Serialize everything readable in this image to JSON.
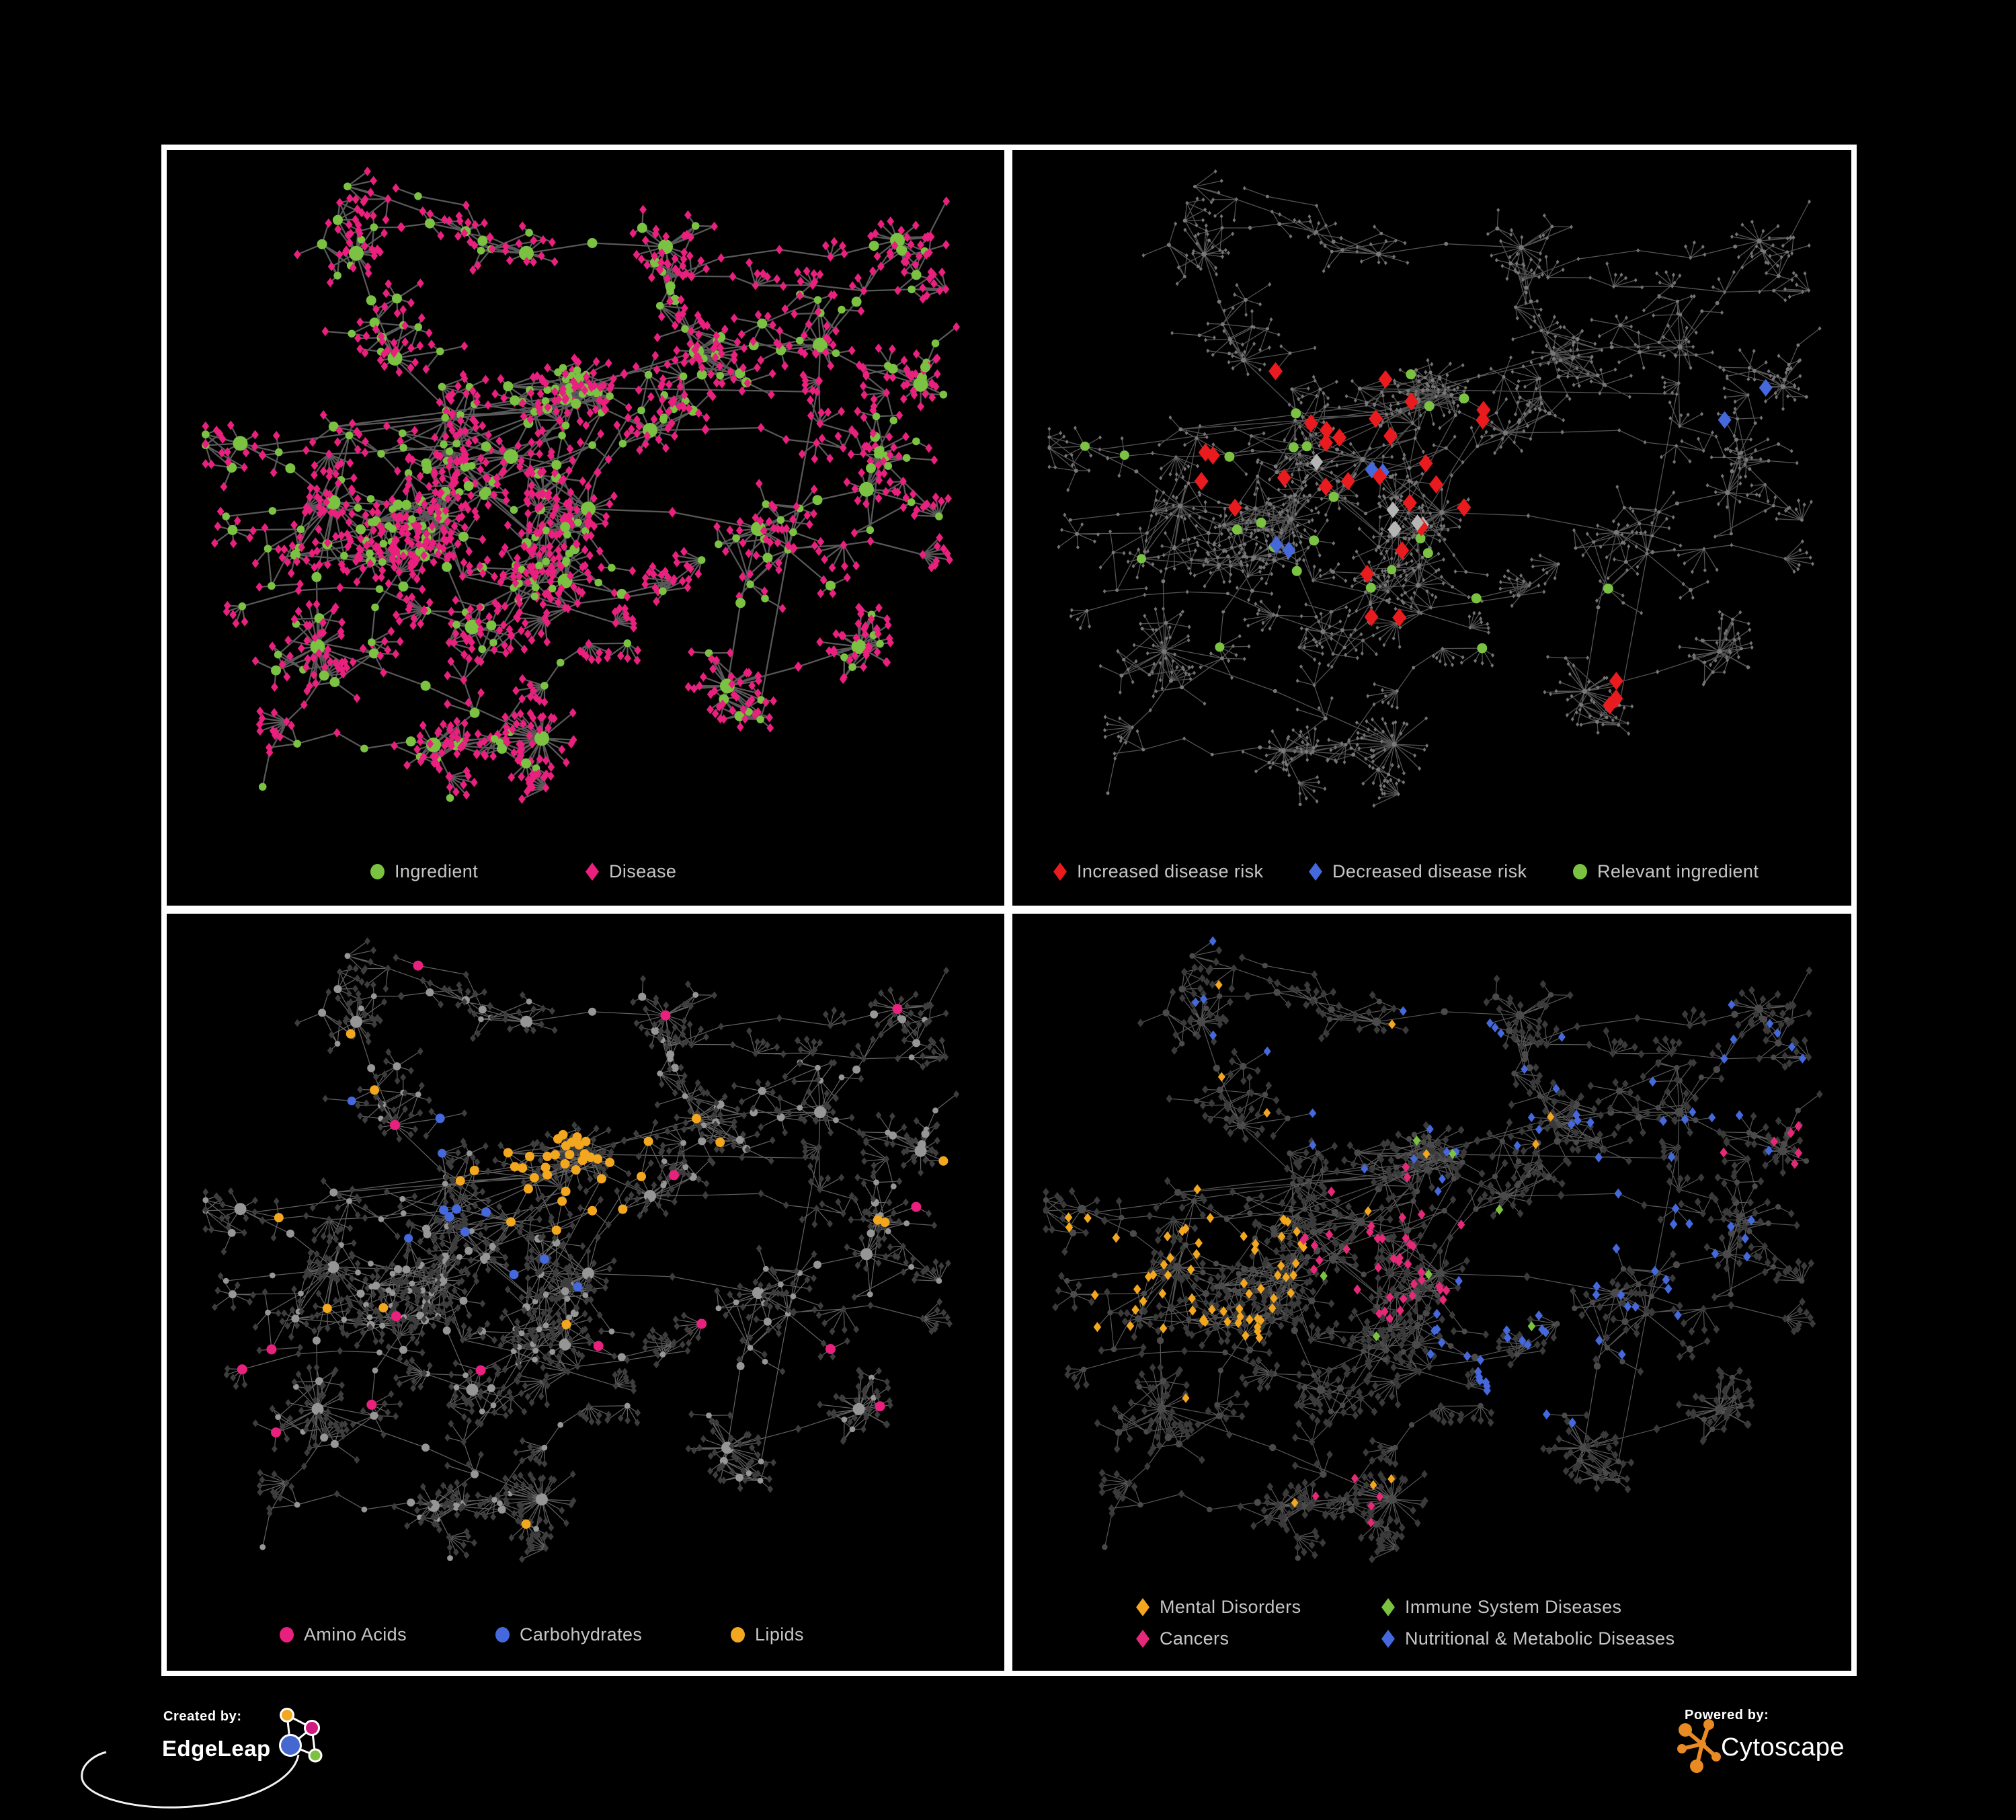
{
  "page": {
    "background": "#000000",
    "frame_color": "#ffffff"
  },
  "legends": {
    "p1": {
      "items": [
        {
          "shape": "circle",
          "color": "#7CC242",
          "label": "Ingredient"
        },
        {
          "shape": "diamond",
          "color": "#E9207E",
          "label": "Disease"
        }
      ]
    },
    "p2": {
      "items": [
        {
          "shape": "diamond",
          "color": "#EA1B1E",
          "label": "Increased disease risk"
        },
        {
          "shape": "diamond",
          "color": "#4569DC",
          "label": "Decreased disease risk"
        },
        {
          "shape": "circle",
          "color": "#7CC242",
          "label": "Relevant ingredient"
        }
      ]
    },
    "p3": {
      "items": [
        {
          "shape": "circle",
          "color": "#E9207E",
          "label": "Amino Acids"
        },
        {
          "shape": "circle",
          "color": "#4569DC",
          "label": "Carbohydrates"
        },
        {
          "shape": "circle",
          "color": "#F3A71E",
          "label": "Lipids"
        }
      ]
    },
    "p4": {
      "items": [
        {
          "shape": "diamond",
          "color": "#F3A71E",
          "label": "Mental Disorders"
        },
        {
          "shape": "diamond",
          "color": "#7CC242",
          "label": "Immune System Diseases"
        },
        {
          "shape": "diamond",
          "color": "#E62878",
          "label": "Cancers"
        },
        {
          "shape": "diamond",
          "color": "#4569DC",
          "label": "Nutritional & Metabolic Diseases"
        }
      ]
    }
  },
  "footer": {
    "created_by": "Created by:",
    "brand_left": "EdgeLeap",
    "powered_by": "Powered by:",
    "brand_right": "Cytoscape",
    "edgeleap_colors": {
      "orange": "#F3A71E",
      "pink": "#D2197F",
      "blue": "#4468D0",
      "green": "#7DC142"
    },
    "cytoscape_orange": "#E98A23"
  },
  "chart_data": {
    "type": "network",
    "description": "Four views of one bipartite ingredient(circle)-disease(diamond) network",
    "seed": 1337,
    "shared_graph": {
      "clusters": [
        {
          "x": 0.4,
          "y": 0.44,
          "n": 26,
          "spread": 0.085,
          "dense": true
        },
        {
          "x": 0.31,
          "y": 0.53,
          "n": 22,
          "spread": 0.075,
          "dense": true
        },
        {
          "x": 0.47,
          "y": 0.35,
          "n": 20,
          "spread": 0.042,
          "dense": true,
          "dl": 0.6
        },
        {
          "x": 0.17,
          "y": 0.51,
          "n": 20,
          "spread": 0.08,
          "dl": 1.7
        },
        {
          "x": 0.5,
          "y": 0.52,
          "n": 12,
          "spread": 0.065
        },
        {
          "x": 0.72,
          "y": 0.55,
          "n": 12,
          "spread": 0.07
        },
        {
          "x": 0.86,
          "y": 0.49,
          "n": 9,
          "spread": 0.06
        },
        {
          "x": 0.64,
          "y": 0.28,
          "n": 9,
          "spread": 0.06
        },
        {
          "x": 0.25,
          "y": 0.29,
          "n": 8,
          "spread": 0.06
        },
        {
          "x": 0.8,
          "y": 0.27,
          "n": 8,
          "spread": 0.06
        },
        {
          "x": 0.15,
          "y": 0.73,
          "n": 7,
          "spread": 0.06,
          "burst": 12
        },
        {
          "x": 0.44,
          "y": 0.87,
          "n": 3,
          "spread": 0.05,
          "burst": 26
        },
        {
          "x": 0.68,
          "y": 0.79,
          "n": 6,
          "spread": 0.055,
          "burst": 14
        },
        {
          "x": 0.3,
          "y": 0.88,
          "n": 5,
          "spread": 0.05
        },
        {
          "x": 0.85,
          "y": 0.73,
          "n": 5,
          "spread": 0.05,
          "burst": 10
        },
        {
          "x": 0.6,
          "y": 0.12,
          "n": 5,
          "spread": 0.05
        },
        {
          "x": 0.42,
          "y": 0.13,
          "n": 5,
          "spread": 0.05
        },
        {
          "x": 0.2,
          "y": 0.13,
          "n": 5,
          "spread": 0.05,
          "burst": 6
        },
        {
          "x": 0.9,
          "y": 0.11,
          "n": 4,
          "spread": 0.045
        },
        {
          "x": 0.05,
          "y": 0.42,
          "n": 4,
          "spread": 0.045
        },
        {
          "x": 0.93,
          "y": 0.33,
          "n": 5,
          "spread": 0.045
        },
        {
          "x": 0.35,
          "y": 0.7,
          "n": 6,
          "spread": 0.055
        },
        {
          "x": 0.47,
          "y": 0.63,
          "n": 8,
          "spread": 0.055
        },
        {
          "x": 0.58,
          "y": 0.4,
          "n": 7,
          "spread": 0.05
        }
      ],
      "tendrils": 32,
      "long_edges": 14
    },
    "panels": [
      {
        "name": "ingredient-disease",
        "rect": [
          300,
          250,
          1150,
          975
        ],
        "edge": {
          "color": "#5d5d5d",
          "width": 2.3,
          "opacity": 0.95
        },
        "base": {
          "circle": {
            "color": "#7CC242",
            "r": [
              5.8,
              7.5,
              11
            ]
          },
          "diamond": {
            "color": "#E9207E",
            "hd": [
              5.4,
              6,
              6.6
            ]
          }
        },
        "highlights": []
      },
      {
        "name": "disease-risk",
        "rect": [
          1555,
          250,
          1180,
          985
        ],
        "edge": {
          "color": "#6f6f6f",
          "width": 1.3,
          "opacity": 0.75
        },
        "base": {
          "circle": {
            "color": "#787878",
            "r": [
              2.5,
              3,
              3.8
            ]
          },
          "diamond": {
            "color": "#747474",
            "hd": [
              2.5,
              2.8,
              3.2
            ]
          }
        },
        "highlights": [
          {
            "shape": "diamond",
            "color": "#EA1B1E",
            "count": 28,
            "cx": 0.4,
            "cy": 0.46,
            "R": 0.23,
            "size": 10.5
          },
          {
            "shape": "diamond",
            "color": "#EA1B1E",
            "count": 3,
            "cx": 0.77,
            "cy": 0.84,
            "R": 0.12,
            "size": 10.5
          },
          {
            "shape": "diamond",
            "color": "#EA1B1E",
            "count": 1,
            "cx": 0.97,
            "cy": 0.75,
            "R": 0.06,
            "size": 10.5
          },
          {
            "shape": "diamond",
            "color": "#4569DC",
            "count": 4,
            "cx": 0.33,
            "cy": 0.45,
            "R": 0.13,
            "size": 10
          },
          {
            "shape": "diamond",
            "color": "#4569DC",
            "count": 2,
            "cx": 0.9,
            "cy": 0.36,
            "R": 0.07,
            "size": 10
          },
          {
            "shape": "diamond",
            "color": "#B5B5B5",
            "count": 6,
            "cx": 0.44,
            "cy": 0.47,
            "R": 0.12,
            "size": 9.5
          },
          {
            "shape": "circle",
            "color": "#7CC242",
            "count": 16,
            "cx": 0.38,
            "cy": 0.45,
            "R": 0.19,
            "size": 7.5
          },
          {
            "shape": "circle",
            "color": "#7CC242",
            "count": 3,
            "cx": 0.25,
            "cy": 0.62,
            "R": 0.22,
            "size": 7
          },
          {
            "shape": "circle",
            "color": "#7CC242",
            "count": 2,
            "cx": 0.07,
            "cy": 0.4,
            "R": 0.12,
            "size": 7
          },
          {
            "shape": "circle",
            "color": "#7CC242",
            "count": 3,
            "cx": 0.62,
            "cy": 0.7,
            "R": 0.12,
            "size": 7.5
          }
        ]
      },
      {
        "name": "nutrient-classes",
        "rect": [
          300,
          1395,
          1150,
          960
        ],
        "edge": {
          "color": "#8a8a8a",
          "width": 1.25,
          "opacity": 0.7
        },
        "base": {
          "circle": {
            "color": "#969696",
            "r": [
              4.4,
              6,
              9
            ]
          },
          "diamond": {
            "color": "#3D3D3D",
            "hd": [
              4.4,
              4.8,
              5.4
            ]
          }
        },
        "highlights": [
          {
            "shape": "circle",
            "color": "#F3A71E",
            "count": 44,
            "cx": 0.47,
            "cy": 0.35,
            "R": 0.12,
            "size": 7
          },
          {
            "shape": "circle",
            "color": "#F3A71E",
            "count": 13,
            "cx": 0.5,
            "cy": 0.55,
            "R": 0.55,
            "size": 7
          },
          {
            "shape": "circle",
            "color": "#E9207E",
            "count": 16,
            "cx": 0.5,
            "cy": 0.5,
            "R": 0.6,
            "size": 7.5
          },
          {
            "shape": "circle",
            "color": "#4569DC",
            "count": 9,
            "cx": 0.44,
            "cy": 0.38,
            "R": 0.18,
            "size": 7
          },
          {
            "shape": "circle",
            "color": "#4569DC",
            "count": 3,
            "cx": 0.12,
            "cy": 0.35,
            "R": 0.2,
            "size": 6.5
          }
        ]
      },
      {
        "name": "disease-classes",
        "rect": [
          1550,
          1395,
          1185,
          960
        ],
        "edge": {
          "color": "#6E6E6E",
          "width": 1.2,
          "opacity": 0.8
        },
        "base": {
          "circle": {
            "color": "#4a4a4a",
            "r": [
              4.2,
              5.2,
              6.5
            ]
          },
          "diamond": {
            "color": "#3A3A3A",
            "hd": [
              4.8,
              5.2,
              5.6
            ]
          }
        },
        "highlights": [
          {
            "shape": "diamond",
            "color": "#F3A71E",
            "count": 64,
            "cx": 0.17,
            "cy": 0.5,
            "R": 0.16,
            "size": 5.8
          },
          {
            "shape": "diamond",
            "color": "#F3A71E",
            "count": 8,
            "cx": 0.45,
            "cy": 0.08,
            "R": 0.35,
            "size": 5.5
          },
          {
            "shape": "diamond",
            "color": "#F3A71E",
            "count": 4,
            "cx": 0.3,
            "cy": 0.75,
            "R": 0.2,
            "size": 5.5
          },
          {
            "shape": "diamond",
            "color": "#E62878",
            "count": 40,
            "cx": 0.44,
            "cy": 0.47,
            "R": 0.12,
            "size": 5.8
          },
          {
            "shape": "diamond",
            "color": "#E62878",
            "count": 6,
            "cx": 0.93,
            "cy": 0.33,
            "R": 0.08,
            "size": 5.8
          },
          {
            "shape": "diamond",
            "color": "#E62878",
            "count": 5,
            "cx": 0.45,
            "cy": 0.85,
            "R": 0.12,
            "size": 5.5
          },
          {
            "shape": "diamond",
            "color": "#4569DC",
            "count": 30,
            "cx": 0.62,
            "cy": 0.62,
            "R": 0.14,
            "size": 5.8
          },
          {
            "shape": "diamond",
            "color": "#4569DC",
            "count": 26,
            "cx": 0.83,
            "cy": 0.4,
            "R": 0.22,
            "size": 5.8
          },
          {
            "shape": "diamond",
            "color": "#4569DC",
            "count": 24,
            "cx": 0.4,
            "cy": 0.12,
            "R": 0.3,
            "size": 5.5
          },
          {
            "shape": "diamond",
            "color": "#4569DC",
            "count": 8,
            "cx": 0.9,
            "cy": 0.2,
            "R": 0.12,
            "size": 5.5
          },
          {
            "shape": "diamond",
            "color": "#7CC242",
            "count": 8,
            "cx": 0.5,
            "cy": 0.4,
            "R": 0.3,
            "size": 5.8
          }
        ]
      }
    ]
  }
}
